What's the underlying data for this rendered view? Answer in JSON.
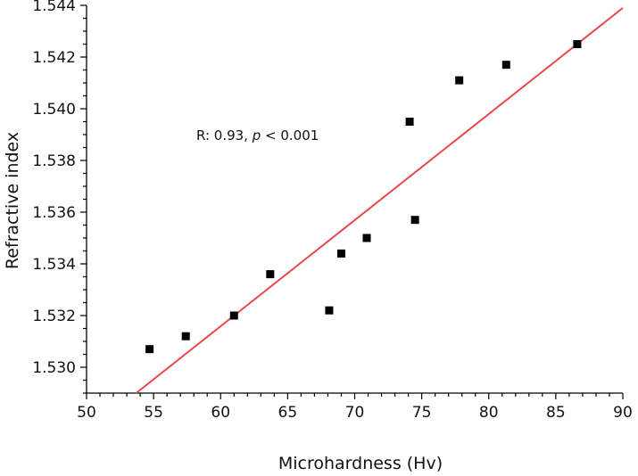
{
  "chart_data": {
    "type": "scatter",
    "xlabel": "Microhardness (Hv)",
    "ylabel": "Refractive index",
    "xlim": [
      50,
      90
    ],
    "ylim": [
      1.529,
      1.544
    ],
    "x_ticks": [
      "50",
      "55",
      "60",
      "65",
      "70",
      "75",
      "80",
      "85",
      "90"
    ],
    "y_ticks": [
      "1.530",
      "1.532",
      "1.534",
      "1.536",
      "1.538",
      "1.540",
      "1.542",
      "1.544"
    ],
    "annotation": {
      "prefix": "R: 0.93, ",
      "italic": "p",
      "suffix": " < 0.001"
    },
    "points": [
      {
        "x": 54.7,
        "y": 1.5307
      },
      {
        "x": 57.4,
        "y": 1.5312
      },
      {
        "x": 61.0,
        "y": 1.532
      },
      {
        "x": 63.7,
        "y": 1.5336
      },
      {
        "x": 68.1,
        "y": 1.5322
      },
      {
        "x": 69.0,
        "y": 1.5344
      },
      {
        "x": 70.9,
        "y": 1.535
      },
      {
        "x": 74.1,
        "y": 1.5395
      },
      {
        "x": 74.5,
        "y": 1.5357
      },
      {
        "x": 77.8,
        "y": 1.5411
      },
      {
        "x": 81.3,
        "y": 1.5417
      },
      {
        "x": 86.6,
        "y": 1.5425
      }
    ],
    "fit_line": {
      "x": [
        53.7,
        90.0
      ],
      "y": [
        1.529,
        1.5439
      ]
    },
    "colors": {
      "points": "#000000",
      "fit_line": "#e8474c"
    },
    "grid": false
  }
}
